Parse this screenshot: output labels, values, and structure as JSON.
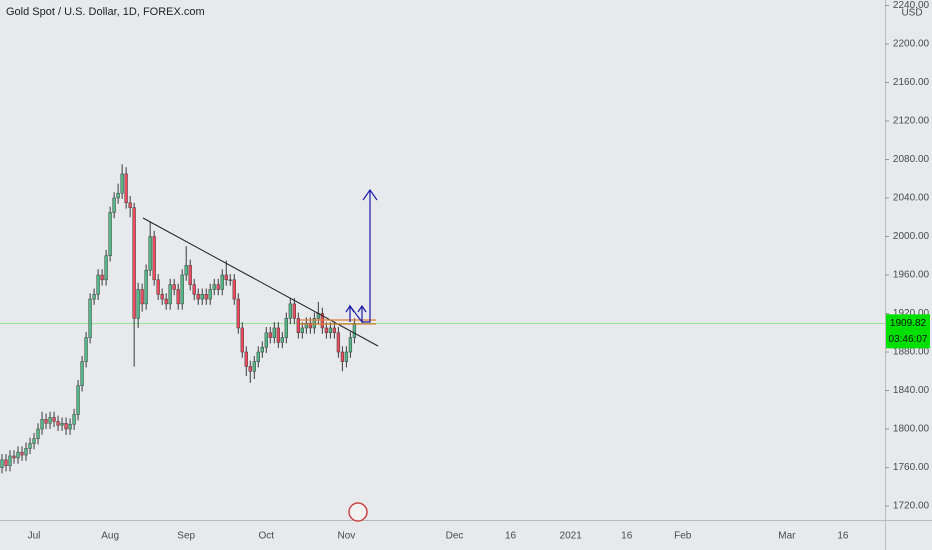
{
  "chart_data": {
    "type": "candlestick",
    "title": "Gold Spot / U.S. Dollar, 1D, FOREX.com",
    "currency": "USD",
    "up_color": "#53b987",
    "down_color": "#eb4d5c",
    "ylim": [
      1705.5,
      2245.7
    ],
    "yticks": [
      {
        "value": 1720,
        "label": "1720.00"
      },
      {
        "value": 1760,
        "label": "1760.00"
      },
      {
        "value": 1800,
        "label": "1800.00"
      },
      {
        "value": 1840,
        "label": "1840.00"
      },
      {
        "value": 1880,
        "label": "1880.00"
      },
      {
        "value": 1920,
        "label": "1920.00"
      },
      {
        "value": 1960,
        "label": "1960.00"
      },
      {
        "value": 2000,
        "label": "2000.00"
      },
      {
        "value": 2040,
        "label": "2040.00"
      },
      {
        "value": 2080,
        "label": "2080.00"
      },
      {
        "value": 2120,
        "label": "2120.00"
      },
      {
        "value": 2160,
        "label": "2160.00"
      },
      {
        "value": 2200,
        "label": "2200.00"
      },
      {
        "value": 2240,
        "label": "2240.00"
      }
    ],
    "last_price": 1909.82,
    "countdown": "03:46:07",
    "last_price_color": "#00e000",
    "categories": [
      null,
      null,
      null,
      null,
      null,
      null,
      null,
      null,
      "Jul",
      null,
      null,
      null,
      null,
      null,
      null,
      null,
      null,
      null,
      null,
      null,
      null,
      null,
      null,
      null,
      null,
      null,
      null,
      "Aug",
      null,
      null,
      null,
      null,
      null,
      null,
      null,
      null,
      null,
      null,
      null,
      null,
      null,
      null,
      null,
      null,
      null,
      null,
      "Sep",
      null,
      null,
      null,
      null,
      null,
      null,
      null,
      null,
      null,
      null,
      null,
      null,
      null,
      null,
      null,
      null,
      null,
      null,
      null,
      "Oct",
      null,
      null,
      null,
      null,
      null,
      null,
      null,
      null,
      null,
      null,
      null,
      null,
      null,
      null,
      null,
      null,
      null,
      null,
      null,
      "Nov",
      null,
      null,
      null,
      null,
      null,
      null,
      null,
      null,
      null,
      null,
      null,
      null,
      null,
      null,
      null,
      null,
      null,
      null,
      null,
      null,
      null,
      null,
      null,
      null,
      null,
      null,
      "Dec",
      null,
      null,
      null,
      null,
      null,
      null,
      null,
      null,
      null,
      null,
      null,
      null,
      null,
      "16",
      null,
      null,
      null,
      null,
      null,
      null,
      null,
      null,
      null,
      null,
      null,
      null,
      null,
      null,
      "2021",
      null,
      null,
      null,
      null,
      null,
      null,
      null,
      null,
      null,
      null,
      null,
      null,
      null,
      "16",
      null,
      null,
      null,
      null,
      null,
      null,
      null,
      null,
      null,
      null,
      null,
      null,
      null,
      "Feb",
      null,
      null,
      null,
      null,
      null,
      null,
      null,
      null,
      null,
      null,
      null,
      null,
      null,
      null,
      null,
      null,
      null,
      null,
      null,
      null,
      null,
      null,
      null,
      null,
      null,
      "Mar",
      null,
      null,
      null,
      null,
      null,
      null,
      null,
      null,
      null,
      null,
      null,
      null,
      null,
      "16",
      null,
      null,
      null,
      null,
      null,
      null,
      null,
      null,
      null,
      null
    ],
    "open": [
      1760,
      1768,
      1762,
      1772,
      1770,
      1776,
      1773,
      1780,
      1785,
      1790,
      1800,
      1810,
      1806,
      1812,
      1808,
      1804,
      1806,
      1800,
      1805,
      1815,
      1845,
      1870,
      1895,
      1935,
      1940,
      1960,
      1955,
      1980,
      2025,
      2040,
      2045,
      2065,
      2035,
      2030,
      1915,
      1945,
      1930,
      1965,
      2000,
      1955,
      1940,
      1935,
      1930,
      1950,
      1945,
      1930,
      1960,
      1970,
      1950,
      1940,
      1935,
      1940,
      1935,
      1945,
      1950,
      1945,
      1960,
      1955,
      1955,
      1935,
      1905,
      1880,
      1865,
      1860,
      1870,
      1880,
      1885,
      1900,
      1895,
      1905,
      1890,
      1895,
      1915,
      1930,
      1915,
      1900,
      1905,
      1910,
      1905,
      1915,
      1920,
      1905,
      1900,
      1905,
      1900,
      1880,
      1870,
      1880,
      1895,
      null,
      null,
      null,
      null,
      null,
      null,
      null,
      null,
      null,
      null,
      null,
      null,
      null,
      null,
      null,
      null,
      null,
      null,
      null,
      null,
      null,
      null,
      null,
      null,
      null,
      null,
      null,
      null,
      null,
      null,
      null,
      null,
      null,
      null,
      null,
      null,
      null,
      null,
      null,
      null,
      null,
      null,
      null,
      null,
      null,
      null,
      null,
      null,
      null,
      null,
      null,
      null,
      null,
      null,
      null,
      null,
      null,
      null,
      null,
      null,
      null,
      null,
      null,
      null,
      null,
      null,
      null,
      null,
      null,
      null,
      null,
      null,
      null,
      null,
      null,
      null,
      null,
      null,
      null,
      null,
      null,
      null,
      null,
      null,
      null,
      null,
      null,
      null,
      null,
      null,
      null,
      null,
      null,
      null,
      null,
      null,
      null,
      null,
      null,
      null,
      null,
      null,
      null,
      null,
      null,
      null,
      null,
      null,
      null,
      null,
      null,
      null,
      null,
      null,
      null,
      null,
      null,
      null,
      null,
      null,
      null,
      null,
      null,
      null,
      null,
      null,
      null,
      null,
      null,
      null,
      null,
      null
    ],
    "high": [
      1774,
      1774,
      1778,
      1778,
      1782,
      1782,
      1786,
      1791,
      1796,
      1806,
      1818,
      1816,
      1818,
      1818,
      1814,
      1812,
      1812,
      1811,
      1821,
      1851,
      1876,
      1901,
      1941,
      1946,
      1966,
      1966,
      1986,
      2031,
      2046,
      2055,
      2075,
      2072,
      2042,
      2035,
      1952,
      1951,
      1971,
      2015,
      2006,
      1961,
      1946,
      1941,
      1956,
      1956,
      1951,
      1966,
      1990,
      1976,
      1956,
      1946,
      1946,
      1946,
      1951,
      1956,
      1956,
      1966,
      1975,
      1961,
      1961,
      1941,
      1911,
      1886,
      1871,
      1876,
      1886,
      1891,
      1906,
      1906,
      1911,
      1911,
      1901,
      1921,
      1936,
      1936,
      1921,
      1911,
      1916,
      1916,
      1921,
      1932,
      1926,
      1911,
      1911,
      1911,
      1906,
      1886,
      1886,
      1901,
      1915,
      null,
      null,
      null,
      null,
      null,
      null,
      null,
      null,
      null,
      null,
      null,
      null,
      null,
      null,
      null,
      null,
      null,
      null,
      null,
      null,
      null,
      null,
      null,
      null,
      null,
      null,
      null,
      null,
      null,
      null,
      null,
      null,
      null,
      null,
      null,
      null,
      null,
      null,
      null,
      null,
      null,
      null,
      null,
      null,
      null,
      null,
      null,
      null,
      null,
      null,
      null,
      null,
      null,
      null,
      null,
      null,
      null,
      null,
      null,
      null,
      null,
      null,
      null,
      null,
      null,
      null,
      null,
      null,
      null,
      null,
      null,
      null,
      null,
      null,
      null,
      null,
      null,
      null,
      null,
      null,
      null,
      null,
      null,
      null,
      null,
      null,
      null,
      null,
      null,
      null,
      null,
      null,
      null,
      null,
      null,
      null,
      null,
      null,
      null,
      null,
      null,
      null,
      null,
      null,
      null,
      null,
      null,
      null,
      null,
      null,
      null,
      null,
      null,
      null,
      null,
      null,
      null,
      null,
      null,
      null,
      null,
      null,
      null,
      null,
      null,
      null,
      null,
      null,
      null,
      null,
      null,
      null
    ],
    "low": [
      1754,
      1756,
      1756,
      1764,
      1764,
      1767,
      1767,
      1774,
      1779,
      1784,
      1794,
      1800,
      1800,
      1802,
      1798,
      1798,
      1794,
      1794,
      1799,
      1809,
      1839,
      1864,
      1889,
      1929,
      1934,
      1949,
      1949,
      1974,
      2019,
      2034,
      2039,
      2029,
      2020,
      1865,
      1905,
      1922,
      1924,
      1959,
      1949,
      1934,
      1929,
      1924,
      1924,
      1939,
      1924,
      1924,
      1954,
      1944,
      1934,
      1929,
      1929,
      1929,
      1929,
      1939,
      1939,
      1939,
      1949,
      1949,
      1929,
      1899,
      1874,
      1855,
      1848,
      1852,
      1864,
      1874,
      1879,
      1889,
      1889,
      1884,
      1884,
      1889,
      1909,
      1909,
      1894,
      1894,
      1899,
      1899,
      1899,
      1909,
      1899,
      1894,
      1894,
      1894,
      1874,
      1860,
      1864,
      1874,
      1889,
      null,
      null,
      null,
      null,
      null,
      null,
      null,
      null,
      null,
      null,
      null,
      null,
      null,
      null,
      null,
      null,
      null,
      null,
      null,
      null,
      null,
      null,
      null,
      null,
      null,
      null,
      null,
      null,
      null,
      null,
      null,
      null,
      null,
      null,
      null,
      null,
      null,
      null,
      null,
      null,
      null,
      null,
      null,
      null,
      null,
      null,
      null,
      null,
      null,
      null,
      null,
      null,
      null,
      null,
      null,
      null,
      null,
      null,
      null,
      null,
      null,
      null,
      null,
      null,
      null,
      null,
      null,
      null,
      null,
      null,
      null,
      null,
      null,
      null,
      null,
      null,
      null,
      null,
      null,
      null,
      null,
      null,
      null,
      null,
      null,
      null,
      null,
      null,
      null,
      null,
      null,
      null,
      null,
      null,
      null,
      null,
      null,
      null,
      null,
      null,
      null,
      null,
      null,
      null,
      null,
      null,
      null,
      null,
      null,
      null,
      null,
      null,
      null,
      null,
      null,
      null,
      null,
      null,
      null,
      null,
      null,
      null,
      null,
      null,
      null,
      null,
      null,
      null,
      null,
      null,
      null,
      null
    ],
    "close": [
      1768,
      1762,
      1772,
      1770,
      1776,
      1773,
      1780,
      1785,
      1790,
      1800,
      1810,
      1806,
      1812,
      1808,
      1804,
      1806,
      1800,
      1805,
      1815,
      1845,
      1870,
      1895,
      1935,
      1940,
      1960,
      1955,
      1980,
      2025,
      2040,
      2045,
      2065,
      2035,
      2030,
      1915,
      1945,
      1930,
      1965,
      2000,
      1955,
      1940,
      1935,
      1930,
      1950,
      1945,
      1930,
      1960,
      1970,
      1950,
      1940,
      1935,
      1940,
      1935,
      1945,
      1950,
      1945,
      1960,
      1955,
      1955,
      1935,
      1905,
      1880,
      1865,
      1860,
      1870,
      1880,
      1885,
      1900,
      1895,
      1905,
      1890,
      1895,
      1915,
      1930,
      1915,
      1900,
      1905,
      1910,
      1905,
      1915,
      1920,
      1905,
      1900,
      1905,
      1900,
      1880,
      1870,
      1880,
      1895,
      1909.82,
      null,
      null,
      null,
      null,
      null,
      null,
      null,
      null,
      null,
      null,
      null,
      null,
      null,
      null,
      null,
      null,
      null,
      null,
      null,
      null,
      null,
      null,
      null,
      null,
      null,
      null,
      null,
      null,
      null,
      null,
      null,
      null,
      null,
      null,
      null,
      null,
      null,
      null,
      null,
      null,
      null,
      null,
      null,
      null,
      null,
      null,
      null,
      null,
      null,
      null,
      null,
      null,
      null,
      null,
      null,
      null,
      null,
      null,
      null,
      null,
      null,
      null,
      null,
      null,
      null,
      null,
      null,
      null,
      null,
      null,
      null,
      null,
      null,
      null,
      null,
      null,
      null,
      null,
      null,
      null,
      null,
      null,
      null,
      null,
      null,
      null,
      null,
      null,
      null,
      null,
      null,
      null,
      null,
      null,
      null,
      null,
      null,
      null,
      null,
      null,
      null,
      null,
      null,
      null,
      null,
      null,
      null,
      null,
      null,
      null,
      null,
      null,
      null,
      null,
      null,
      null,
      null,
      null,
      null,
      null,
      null,
      null,
      null,
      null,
      null,
      null,
      null,
      null,
      null,
      null,
      null,
      null
    ]
  }
}
